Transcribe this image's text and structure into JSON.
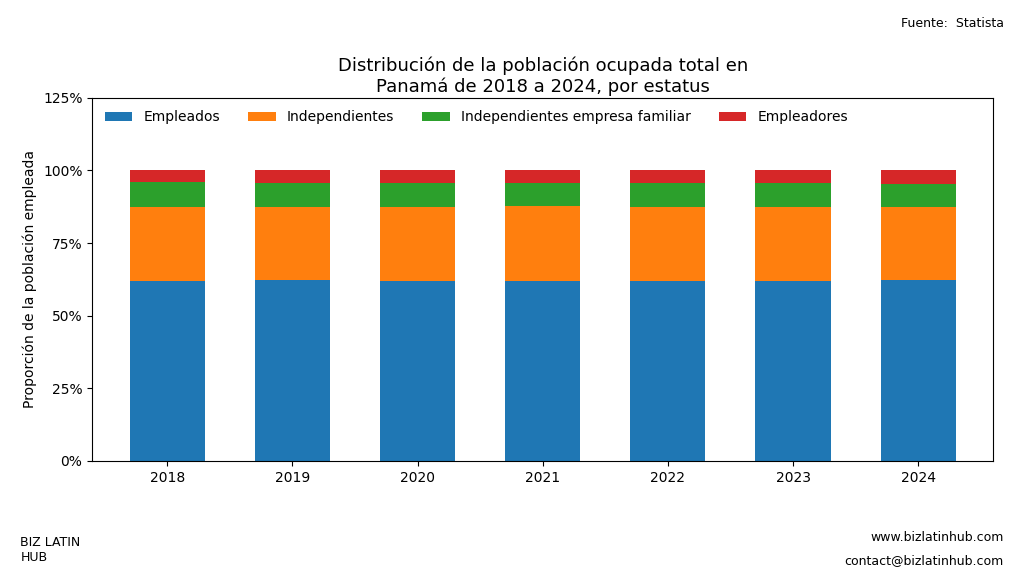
{
  "chart_data": {
    "type": "bar",
    "stacked": true,
    "title": "Distribución de la población ocupada total en\nPanamá de 2018 a 2024, por estatus",
    "y_label": "Proporción de la población empleada",
    "categories": [
      "2018",
      "2019",
      "2020",
      "2021",
      "2022",
      "2023",
      "2024"
    ],
    "series": [
      {
        "name": "Empleados",
        "values": [
          62.0,
          62.2,
          62.1,
          61.8,
          62.0,
          62.1,
          62.3
        ]
      },
      {
        "name": "Independientes",
        "values": [
          25.5,
          25.3,
          25.4,
          25.8,
          25.5,
          25.3,
          25.2
        ]
      },
      {
        "name": "Independientes empresa familiar",
        "values": [
          8.5,
          8.3,
          8.3,
          8.2,
          8.2,
          8.2,
          8.0
        ]
      },
      {
        "name": "Empleadores",
        "values": [
          4.0,
          4.2,
          4.2,
          4.2,
          4.3,
          4.4,
          4.5
        ]
      }
    ],
    "ylim": [
      0,
      125
    ],
    "yticks": [
      {
        "value": 0,
        "label": "0%"
      },
      {
        "value": 25,
        "label": "25%"
      },
      {
        "value": 50,
        "label": "50%"
      },
      {
        "value": 75,
        "label": "75%"
      },
      {
        "value": 100,
        "label": "100%"
      },
      {
        "value": 125,
        "label": "125%"
      }
    ],
    "grid": false,
    "legend": "upper left",
    "annotations": [
      "Fuente:  Statista",
      "BIZ LATIN\nHUB",
      "www.bizlatinhub.com",
      "contact@bizlatinhub.com"
    ]
  }
}
